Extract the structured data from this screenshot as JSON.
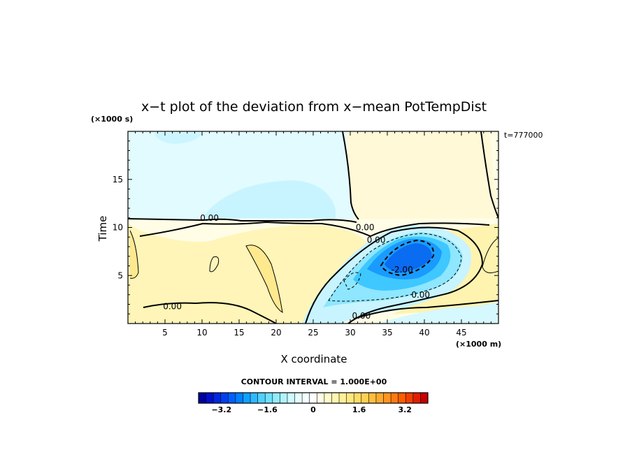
{
  "chart_data": {
    "type": "heatmap",
    "title": "x−t plot of the deviation from x−mean PotTempDist",
    "xlabel": "X coordinate",
    "ylabel": "Time",
    "x_unit": "(×1000 m)",
    "y_unit": "(×1000 s)",
    "time_stamp": "t=777000",
    "xlim": [
      0,
      50
    ],
    "ylim": [
      0,
      20
    ],
    "x_ticks": [
      5,
      10,
      15,
      20,
      25,
      30,
      35,
      40,
      45
    ],
    "y_ticks": [
      5,
      10,
      15
    ],
    "contour_labels": [
      {
        "text": "0.00",
        "x": 11,
        "y": 11
      },
      {
        "text": "0.00",
        "x": 32,
        "y": 10
      },
      {
        "text": "0.00",
        "x": 33.5,
        "y": 8.7
      },
      {
        "text": "-2.00",
        "x": 37,
        "y": 5.6
      },
      {
        "text": "0.00",
        "x": 39.5,
        "y": 3
      },
      {
        "text": "0.00",
        "x": 6,
        "y": 1.8
      },
      {
        "text": "0.00",
        "x": 31.5,
        "y": 0.8
      }
    ],
    "field_features": [
      {
        "kind": "minimum",
        "x": 37,
        "y": 6,
        "value": -3.0
      },
      {
        "kind": "warm-band",
        "x": 20,
        "y": 7,
        "value": 0.6
      },
      {
        "kind": "cool-plateau",
        "x": 25,
        "y": 15,
        "value": -0.3
      }
    ],
    "colorbar": {
      "label": "CONTOUR INTERVAL = 1.000E+00",
      "range": [
        -4,
        4
      ],
      "interval": 1.0,
      "tick_labels": [
        "−3.2",
        "−1.6",
        "0",
        "1.6",
        "3.2"
      ],
      "tick_values": [
        -3.2,
        -1.6,
        0,
        1.6,
        3.2
      ],
      "colors": [
        "#0000a0",
        "#0010c8",
        "#0028e0",
        "#0040f0",
        "#0060ff",
        "#0080ff",
        "#10a0ff",
        "#30b8ff",
        "#50d0ff",
        "#70e0ff",
        "#90ecff",
        "#b0f4ff",
        "#cffaff",
        "#e6fdff",
        "#f4ffff",
        "#ffffff",
        "#ffffe6",
        "#fffcc8",
        "#fff7b0",
        "#fff098",
        "#ffe880",
        "#ffdc68",
        "#ffd050",
        "#ffbf40",
        "#ffaa30",
        "#ff9420",
        "#ff7a10",
        "#ff5c00",
        "#f04000",
        "#e02000",
        "#c80000"
      ]
    }
  }
}
